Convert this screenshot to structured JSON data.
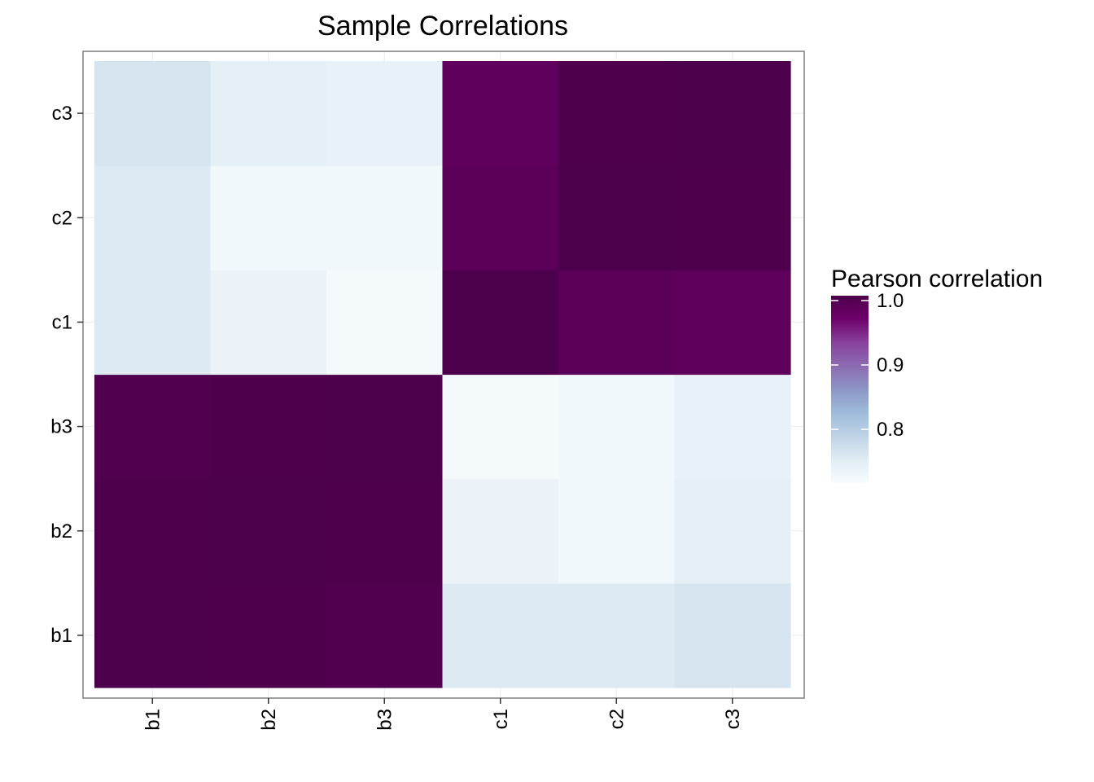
{
  "chart_data": {
    "type": "heatmap",
    "title": "Sample Correlations",
    "xlabel": "",
    "ylabel": "",
    "x": [
      "b1",
      "b2",
      "b3",
      "c1",
      "c2",
      "c3"
    ],
    "y": [
      "b1",
      "b2",
      "b3",
      "c1",
      "c2",
      "c3"
    ],
    "values": [
      [
        1.0,
        0.998,
        0.997,
        0.74,
        0.74,
        0.75
      ],
      [
        0.998,
        1.0,
        0.999,
        0.72,
        0.71,
        0.73
      ],
      [
        0.997,
        0.999,
        1.0,
        0.705,
        0.71,
        0.725
      ],
      [
        0.74,
        0.72,
        0.705,
        1.0,
        0.985,
        0.98
      ],
      [
        0.74,
        0.71,
        0.71,
        0.985,
        1.0,
        0.999
      ],
      [
        0.75,
        0.73,
        0.725,
        0.98,
        0.999,
        1.0
      ]
    ],
    "color_scale": {
      "name": "Pearson correlation",
      "min": 0.7,
      "max": 1.0,
      "breaks": [
        0.8,
        0.9,
        1.0
      ],
      "break_labels": [
        "0.8",
        "0.9",
        "1.0"
      ],
      "colors": [
        "#f7fcfd",
        "#e0ecf4",
        "#bfd3e6",
        "#9ebcda",
        "#8c96c6",
        "#8c6bb1",
        "#88419d",
        "#6e016b",
        "#4d004b"
      ]
    },
    "grid": true,
    "legend_position": "right"
  }
}
